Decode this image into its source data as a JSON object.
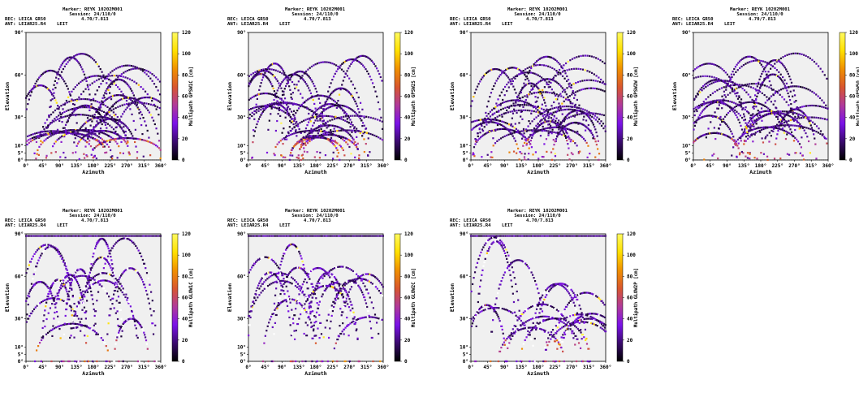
{
  "header": {
    "marker": "Marker: REYK 10202M001",
    "session": "Session: 24/110/0",
    "rec": "REC: LEICA GR50",
    "rec_version": "4.70/7.813",
    "ant": "ANT: LEIAR25.R4",
    "ant_radome": "LEIT"
  },
  "axes": {
    "xlabel": "Azimuth",
    "ylabel": "Elevation",
    "xticks": [
      "0°",
      "45°",
      "90°",
      "135°",
      "180°",
      "225°",
      "270°",
      "315°",
      "360°"
    ],
    "yticks": [
      "0°",
      "5°",
      "10°",
      "30°",
      "60°",
      "90°"
    ],
    "colorbar_ticks": [
      "0",
      "20",
      "40",
      "60",
      "80",
      "100",
      "120"
    ]
  },
  "colors": {
    "background": "#f0f0f0",
    "colormap": [
      "#000000",
      "#3a0a6e",
      "#7a12e8",
      "#b03a9a",
      "#d8562f",
      "#f09000",
      "#ffe000",
      "#fffa60"
    ]
  },
  "chart_data": [
    {
      "type": "scatter",
      "constellation": "GPS",
      "colorbar_label": "Multipath GPSW1C [cm]",
      "xlim": [
        0,
        360
      ],
      "ylim": [
        0,
        90
      ],
      "clim": [
        0,
        120
      ],
      "max_elevation": 77,
      "grid": false
    },
    {
      "type": "scatter",
      "constellation": "GPS",
      "colorbar_label": "Multipath GPSW2S [cm]",
      "xlim": [
        0,
        360
      ],
      "ylim": [
        0,
        90
      ],
      "clim": [
        0,
        120
      ],
      "max_elevation": 77,
      "grid": false
    },
    {
      "type": "scatter",
      "constellation": "GPS",
      "colorbar_label": "Multipath GPSW2W [cm]",
      "xlim": [
        0,
        360
      ],
      "ylim": [
        0,
        90
      ],
      "clim": [
        0,
        120
      ],
      "max_elevation": 77,
      "grid": false
    },
    {
      "type": "scatter",
      "constellation": "GPS",
      "colorbar_label": "Multipath GPSW5Q [cm]",
      "xlim": [
        0,
        360
      ],
      "ylim": [
        0,
        90
      ],
      "clim": [
        0,
        120
      ],
      "max_elevation": 77,
      "grid": false
    },
    {
      "type": "scatter",
      "constellation": "GLONASS",
      "colorbar_label": "Multipath GLOW1C [cm]",
      "xlim": [
        0,
        360
      ],
      "ylim": [
        0,
        90
      ],
      "clim": [
        0,
        120
      ],
      "max_elevation": 89,
      "grid": false
    },
    {
      "type": "scatter",
      "constellation": "GLONASS",
      "colorbar_label": "Multipath GLOW2C [cm]",
      "xlim": [
        0,
        360
      ],
      "ylim": [
        0,
        90
      ],
      "clim": [
        0,
        120
      ],
      "max_elevation": 89,
      "grid": false
    },
    {
      "type": "scatter",
      "constellation": "GLONASS",
      "colorbar_label": "Multipath GLOW2P [cm]",
      "xlim": [
        0,
        360
      ],
      "ylim": [
        0,
        90
      ],
      "clim": [
        0,
        120
      ],
      "max_elevation": 89,
      "grid": false
    }
  ]
}
